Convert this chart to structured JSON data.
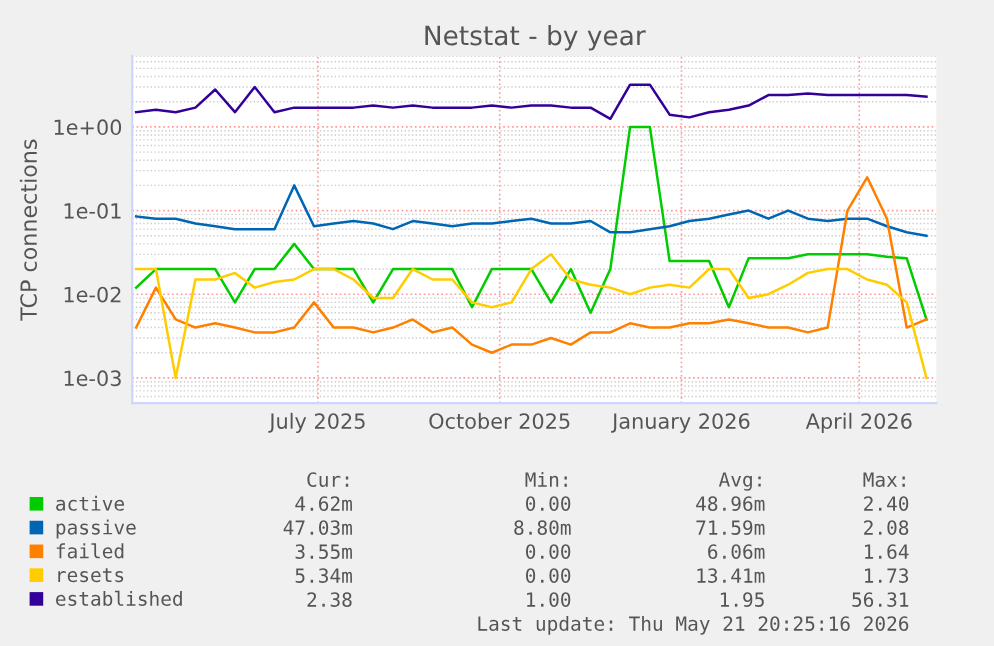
{
  "chart_data": {
    "type": "line",
    "title": "Netstat - by year",
    "ylabel": "TCP connections",
    "x": [
      "2025-04-14",
      "2025-04-24",
      "2025-05-04",
      "2025-05-14",
      "2025-05-24",
      "2025-06-03",
      "2025-06-13",
      "2025-06-23",
      "2025-07-03",
      "2025-07-13",
      "2025-07-23",
      "2025-08-02",
      "2025-08-12",
      "2025-08-22",
      "2025-09-01",
      "2025-09-11",
      "2025-09-21",
      "2025-10-01",
      "2025-10-11",
      "2025-10-21",
      "2025-10-31",
      "2025-11-10",
      "2025-11-20",
      "2025-11-30",
      "2025-12-10",
      "2025-12-20",
      "2025-12-30",
      "2026-01-09",
      "2026-01-19",
      "2026-01-29",
      "2026-02-08",
      "2026-02-18",
      "2026-02-28",
      "2026-03-10",
      "2026-03-20",
      "2026-03-30",
      "2026-04-09",
      "2026-04-19",
      "2026-04-29",
      "2026-05-09",
      "2026-05-19"
    ],
    "series": [
      {
        "name": "active",
        "color": "#00cc00",
        "values": [
          0.012,
          0.02,
          0.02,
          0.02,
          0.02,
          0.008,
          0.02,
          0.02,
          0.04,
          0.02,
          0.02,
          0.02,
          0.008,
          0.02,
          0.02,
          0.02,
          0.02,
          0.007,
          0.02,
          0.02,
          0.02,
          0.008,
          0.02,
          0.006,
          0.02,
          1.0,
          1.0,
          0.025,
          0.025,
          0.025,
          0.007,
          0.027,
          0.027,
          0.027,
          0.03,
          0.03,
          0.03,
          0.03,
          0.028,
          0.027,
          0.005
        ]
      },
      {
        "name": "passive",
        "color": "#0066b3",
        "values": [
          0.085,
          0.08,
          0.08,
          0.07,
          0.065,
          0.06,
          0.06,
          0.06,
          0.2,
          0.065,
          0.07,
          0.075,
          0.07,
          0.06,
          0.075,
          0.07,
          0.065,
          0.07,
          0.07,
          0.075,
          0.08,
          0.07,
          0.07,
          0.075,
          0.055,
          0.055,
          0.06,
          0.065,
          0.075,
          0.08,
          0.09,
          0.1,
          0.08,
          0.1,
          0.08,
          0.075,
          0.08,
          0.08,
          0.065,
          0.055,
          0.05
        ]
      },
      {
        "name": "failed",
        "color": "#ff8000",
        "values": [
          0.004,
          0.012,
          0.005,
          0.004,
          0.0045,
          0.004,
          0.0035,
          0.0035,
          0.004,
          0.008,
          0.004,
          0.004,
          0.0035,
          0.004,
          0.005,
          0.0035,
          0.004,
          0.0025,
          0.002,
          0.0025,
          0.0025,
          0.003,
          0.0025,
          0.0035,
          0.0035,
          0.0045,
          0.004,
          0.004,
          0.0045,
          0.0045,
          0.005,
          0.0045,
          0.004,
          0.004,
          0.0035,
          0.004,
          0.1,
          0.25,
          0.08,
          0.004,
          0.005
        ]
      },
      {
        "name": "resets",
        "color": "#ffcc00",
        "values": [
          0.02,
          0.02,
          0.001,
          0.015,
          0.015,
          0.018,
          0.012,
          0.014,
          0.015,
          0.02,
          0.02,
          0.015,
          0.009,
          0.009,
          0.02,
          0.015,
          0.015,
          0.008,
          0.007,
          0.008,
          0.02,
          0.03,
          0.015,
          0.013,
          0.012,
          0.01,
          0.012,
          0.013,
          0.012,
          0.02,
          0.02,
          0.009,
          0.01,
          0.013,
          0.018,
          0.02,
          0.02,
          0.015,
          0.013,
          0.008,
          0.001
        ]
      },
      {
        "name": "established",
        "color": "#330099",
        "values": [
          1.5,
          1.6,
          1.5,
          1.7,
          2.8,
          1.5,
          3.0,
          1.5,
          1.7,
          1.7,
          1.7,
          1.7,
          1.8,
          1.7,
          1.8,
          1.7,
          1.7,
          1.7,
          1.8,
          1.7,
          1.8,
          1.8,
          1.7,
          1.7,
          1.25,
          3.2,
          3.2,
          1.4,
          1.3,
          1.5,
          1.6,
          1.8,
          2.4,
          2.4,
          2.5,
          2.4,
          2.4,
          2.4,
          2.4,
          2.4,
          2.3
        ]
      }
    ],
    "log": "y",
    "ylim": [
      0.0005,
      7
    ],
    "yticks": [
      {
        "value": 0.001,
        "label": "1e-03"
      },
      {
        "value": 0.01,
        "label": "1e-02"
      },
      {
        "value": 0.1,
        "label": "1e-01"
      },
      {
        "value": 1,
        "label": "1e+00"
      }
    ],
    "xlim": [
      "2025-04-12",
      "2026-05-24"
    ],
    "xticks": [
      {
        "value": "2025-07-15",
        "label": "July 2025"
      },
      {
        "value": "2025-10-15",
        "label": "October 2025"
      },
      {
        "value": "2026-01-15",
        "label": "January 2026"
      },
      {
        "value": "2026-04-15",
        "label": "April 2026"
      }
    ],
    "grid": true,
    "legend": "bottom left",
    "marker": "none",
    "line_style": "solid",
    "annotations": [
      "Cur:",
      "Min:",
      "Avg:",
      "Max:",
      "4.62m",
      "0.00",
      "48.96m",
      "2.40",
      "47.03m",
      "8.80m",
      "71.59m",
      "2.08",
      "3.55m",
      "0.00",
      "6.06m",
      "1.64",
      "5.34m",
      "0.00",
      "13.41m",
      "1.73",
      "2.38",
      "1.00",
      "1.95",
      "56.31",
      "Last update: Thu May 21 20:25:16 2026"
    ]
  }
}
